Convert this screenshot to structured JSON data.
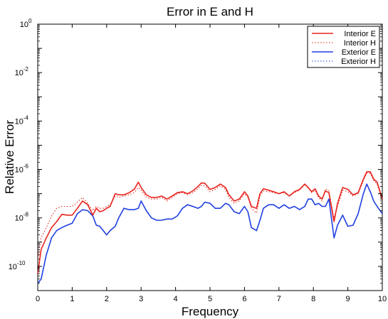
{
  "chart_data": {
    "type": "line",
    "title": "Error in E and H",
    "xlabel": "Frequency",
    "ylabel": "Relative Error",
    "xlim": [
      0,
      10
    ],
    "ylim": [
      1e-11,
      1
    ],
    "yscale": "log",
    "x_ticks": [
      "0",
      "1",
      "2",
      "3",
      "4",
      "5",
      "6",
      "7",
      "8",
      "9",
      "10"
    ],
    "y_ticks": [
      {
        "base": "10",
        "exp": "0",
        "value": 1
      },
      {
        "base": "10",
        "exp": "-2",
        "value": 0.01
      },
      {
        "base": "10",
        "exp": "-4",
        "value": 0.0001
      },
      {
        "base": "10",
        "exp": "-6",
        "value": 1e-06
      },
      {
        "base": "10",
        "exp": "-8",
        "value": 1e-08
      },
      {
        "base": "10",
        "exp": "-10",
        "value": 1e-10
      }
    ],
    "grid": false,
    "legend_position": "top-right",
    "series": [
      {
        "name": "Interior E",
        "color": "#e8231d",
        "style": "solid",
        "x": [
          0,
          0.1,
          0.25,
          0.4,
          0.55,
          0.7,
          0.85,
          1.0,
          1.15,
          1.3,
          1.45,
          1.6,
          1.7,
          1.8,
          1.9,
          2.0,
          2.1,
          2.25,
          2.35,
          2.5,
          2.65,
          2.8,
          2.92,
          3.0,
          3.15,
          3.3,
          3.45,
          3.6,
          3.75,
          3.9,
          4.05,
          4.2,
          4.35,
          4.5,
          4.65,
          4.75,
          4.85,
          5.0,
          5.15,
          5.3,
          5.45,
          5.55,
          5.7,
          5.85,
          6.0,
          6.1,
          6.2,
          6.35,
          6.45,
          6.55,
          6.7,
          6.85,
          7.0,
          7.15,
          7.3,
          7.45,
          7.6,
          7.75,
          7.85,
          7.95,
          8.05,
          8.15,
          8.25,
          8.35,
          8.45,
          8.6,
          8.7,
          8.85,
          9.0,
          9.15,
          9.3,
          9.45,
          9.55,
          9.65,
          9.75,
          9.85,
          10.0
        ],
        "y": [
          5e-11,
          5e-10,
          1.5e-09,
          4e-09,
          7e-09,
          1.4e-08,
          1.3e-08,
          1.3e-08,
          2.5e-08,
          5e-08,
          3.5e-08,
          1.3e-08,
          2.5e-08,
          1.8e-08,
          2e-08,
          2.5e-08,
          3e-08,
          1e-07,
          9e-08,
          9e-08,
          1.1e-07,
          1.5e-07,
          3e-07,
          1.8e-07,
          9e-08,
          7e-08,
          7e-08,
          8e-08,
          6e-08,
          8e-08,
          1.1e-07,
          1.2e-07,
          1e-07,
          1.3e-07,
          2e-07,
          2.8e-07,
          2.7e-07,
          1.5e-07,
          1.8e-07,
          2.5e-07,
          1.8e-07,
          9e-08,
          5e-08,
          6e-08,
          1.2e-07,
          8e-08,
          3e-08,
          2.5e-08,
          1e-07,
          1.6e-07,
          1.4e-07,
          1.2e-07,
          1e-07,
          1.2e-07,
          8e-08,
          1.2e-07,
          1.5e-07,
          2.5e-07,
          1.8e-07,
          1.2e-07,
          1.6e-07,
          8e-08,
          6e-08,
          1.3e-07,
          1.1e-07,
          7e-09,
          4e-08,
          1.8e-07,
          1.5e-07,
          9e-08,
          1.1e-07,
          4e-07,
          8e-07,
          8e-07,
          4e-07,
          3e-07,
          6e-08
        ]
      },
      {
        "name": "Interior H",
        "color": "#e8231d",
        "style": "dotted",
        "x": [
          0,
          0.1,
          0.25,
          0.4,
          0.55,
          0.7,
          0.85,
          1.0,
          1.15,
          1.3,
          1.45,
          1.6,
          1.7,
          1.8,
          1.9,
          2.0,
          2.1,
          2.25,
          2.35,
          2.5,
          2.65,
          2.8,
          2.92,
          3.0,
          3.15,
          3.3,
          3.45,
          3.6,
          3.75,
          3.9,
          4.05,
          4.2,
          4.35,
          4.5,
          4.65,
          4.75,
          4.85,
          5.0,
          5.15,
          5.3,
          5.45,
          5.55,
          5.7,
          5.85,
          6.0,
          6.1,
          6.2,
          6.35,
          6.45,
          6.55,
          6.7,
          6.85,
          7.0,
          7.15,
          7.3,
          7.45,
          7.6,
          7.75,
          7.85,
          7.95,
          8.05,
          8.15,
          8.25,
          8.35,
          8.45,
          8.6,
          8.7,
          8.85,
          9.0,
          9.15,
          9.3,
          9.45,
          9.55,
          9.65,
          9.75,
          9.85,
          10.0
        ],
        "y": [
          2e-10,
          1.5e-09,
          4e-09,
          1.2e-08,
          2.5e-08,
          3e-08,
          3e-08,
          3e-08,
          4.5e-08,
          7e-08,
          4e-08,
          2e-08,
          3e-08,
          2.5e-08,
          2.5e-08,
          3e-08,
          3.5e-08,
          8e-08,
          7e-08,
          8e-08,
          9e-08,
          1.1e-07,
          1.8e-07,
          1.4e-07,
          7e-08,
          6e-08,
          6e-08,
          7e-08,
          5e-08,
          7e-08,
          1e-07,
          1.1e-07,
          9e-08,
          1.1e-07,
          1.6e-07,
          2.2e-07,
          2.1e-07,
          1.2e-07,
          1.5e-07,
          2.1e-07,
          1.5e-07,
          7e-08,
          4e-08,
          5e-08,
          1e-07,
          7e-08,
          2.5e-08,
          1.6e-08,
          8e-08,
          1.3e-07,
          1.2e-07,
          1.1e-07,
          1e-07,
          1.1e-07,
          8e-08,
          1.1e-07,
          1.4e-07,
          2.4e-07,
          1.7e-07,
          1.1e-07,
          1.4e-07,
          7e-08,
          5e-08,
          1.6e-07,
          1.3e-07,
          1e-08,
          3e-08,
          1.4e-07,
          1.2e-07,
          8e-08,
          1e-07,
          3.5e-07,
          7e-07,
          7e-07,
          3.5e-07,
          2.5e-07,
          5e-08
        ]
      },
      {
        "name": "Exterior E",
        "color": "#1f3fe0",
        "style": "solid",
        "x": [
          0,
          0.1,
          0.25,
          0.4,
          0.55,
          0.7,
          0.85,
          1.0,
          1.15,
          1.3,
          1.45,
          1.6,
          1.7,
          1.8,
          1.9,
          2.0,
          2.1,
          2.25,
          2.35,
          2.5,
          2.65,
          2.8,
          2.92,
          3.0,
          3.15,
          3.3,
          3.45,
          3.6,
          3.75,
          3.9,
          4.05,
          4.2,
          4.35,
          4.5,
          4.65,
          4.75,
          4.85,
          5.0,
          5.15,
          5.3,
          5.45,
          5.55,
          5.7,
          5.85,
          6.0,
          6.1,
          6.2,
          6.35,
          6.45,
          6.55,
          6.7,
          6.85,
          7.0,
          7.15,
          7.3,
          7.45,
          7.6,
          7.75,
          7.85,
          7.95,
          8.05,
          8.15,
          8.25,
          8.35,
          8.45,
          8.6,
          8.7,
          8.85,
          9.0,
          9.15,
          9.3,
          9.45,
          9.55,
          9.65,
          9.75,
          9.85,
          10.0
        ],
        "y": [
          2e-11,
          3e-11,
          3e-10,
          1.5e-09,
          3e-09,
          4e-09,
          5e-09,
          6e-09,
          1.5e-08,
          2.2e-08,
          2e-08,
          1.2e-08,
          5e-09,
          4.5e-09,
          3e-09,
          2e-09,
          3e-09,
          4.5e-09,
          1e-08,
          2.5e-08,
          2.2e-08,
          2.2e-08,
          2.5e-08,
          5e-08,
          2e-08,
          1e-08,
          8e-09,
          8e-09,
          9e-09,
          9e-09,
          1.2e-08,
          2.5e-08,
          3.5e-08,
          3e-08,
          2.5e-08,
          3e-08,
          4.5e-08,
          4e-08,
          2.5e-08,
          2.5e-08,
          4e-08,
          3.5e-08,
          1.8e-08,
          1.5e-08,
          3e-08,
          1.8e-08,
          4e-09,
          3e-09,
          8e-09,
          2.5e-08,
          3.5e-08,
          3.5e-08,
          2.5e-08,
          3.5e-08,
          2.5e-08,
          3e-08,
          2.2e-08,
          3e-08,
          6e-08,
          6e-08,
          3.5e-08,
          4e-08,
          3e-08,
          3e-08,
          6e-08,
          1.5e-09,
          5e-09,
          1.3e-08,
          4.5e-09,
          5e-09,
          1.5e-08,
          1e-07,
          2.5e-07,
          1.2e-07,
          5e-08,
          3e-08,
          1.5e-08
        ]
      },
      {
        "name": "Exterior H",
        "color": "#1f3fe0",
        "style": "dotted",
        "x": [],
        "y": []
      }
    ]
  }
}
